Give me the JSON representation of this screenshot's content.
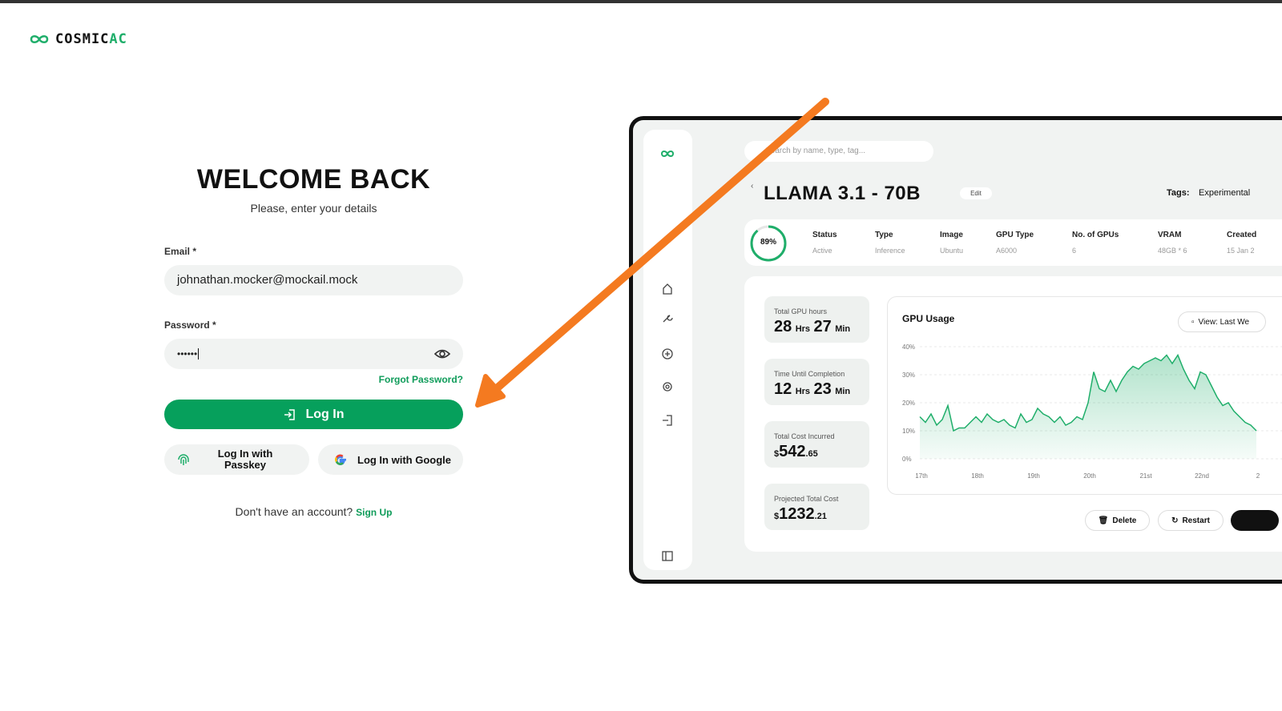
{
  "header": {
    "logo_main": "COSMIC",
    "logo_accent": "AC"
  },
  "login": {
    "title": "WELCOME BACK",
    "subtitle": "Please, enter your details",
    "email_label": "Email *",
    "email_value": "johnathan.mocker@mockail.mock",
    "password_label": "Password *",
    "password_value": "••••••",
    "forgot": "Forgot Password?",
    "login_button": "Log In",
    "passkey_button": "Log In with Passkey",
    "google_button": "Log In with Google",
    "signup_prompt": "Don't have an account?",
    "signup_link": "Sign Up"
  },
  "dashboard": {
    "search_placeholder": "Search by name, type, tag...",
    "title": "LLAMA 3.1 - 70B",
    "edit": "Edit",
    "tags_label": "Tags:",
    "tag": "Experimental",
    "progress": "89%",
    "info": [
      [
        "Status",
        "Active"
      ],
      [
        "Type",
        "Inference"
      ],
      [
        "Image",
        "Ubuntu"
      ],
      [
        "GPU Type",
        "A6000"
      ],
      [
        "No. of GPUs",
        "6"
      ],
      [
        "VRAM",
        "48GB * 6"
      ],
      [
        "Created",
        "15 Jan 2"
      ]
    ],
    "cards": [
      {
        "label": "Total GPU hours",
        "parts": [
          "28",
          "Hrs",
          "27",
          "Min"
        ]
      },
      {
        "label": "Time Until Completion",
        "parts": [
          "12",
          "Hrs",
          "23",
          "Min"
        ]
      },
      {
        "label": "Total Cost Incurred",
        "parts": [
          "$",
          "542",
          ".65"
        ]
      },
      {
        "label": "Projected Total Cost",
        "parts": [
          "$",
          "1232",
          ".21"
        ]
      }
    ],
    "gpu_usage": {
      "title": "GPU Usage",
      "view": "View: Last We",
      "ylim": [
        0,
        40
      ],
      "yticks": [
        {
          "value": 0,
          "label": "0%"
        },
        {
          "value": 10,
          "label": "10%"
        },
        {
          "value": 20,
          "label": "20%"
        },
        {
          "value": 30,
          "label": "30%"
        },
        {
          "value": 40,
          "label": "40%"
        }
      ],
      "categories": [
        "17th",
        "18th",
        "19th",
        "20th",
        "21st",
        "22nd",
        "2"
      ],
      "values": [
        15,
        13,
        16,
        12,
        14,
        19,
        10,
        11,
        11,
        13,
        15,
        13,
        16,
        14,
        13,
        14,
        12,
        11,
        16,
        13,
        14,
        18,
        16,
        15,
        13,
        15,
        12,
        13,
        15,
        14,
        20,
        31,
        25,
        24,
        28,
        24,
        28,
        31,
        33,
        32,
        34,
        35,
        36,
        35,
        37,
        34,
        37,
        32,
        28,
        25,
        31,
        30,
        26,
        22,
        19,
        20,
        17,
        15,
        13,
        12,
        10
      ],
      "color": "#1fae6a"
    },
    "delete": "Delete",
    "restart": "Restart"
  }
}
